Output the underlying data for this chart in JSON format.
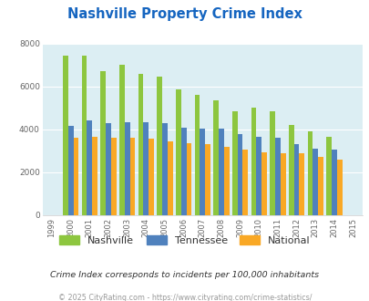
{
  "title": "Nashville Property Crime Index",
  "all_years": [
    1999,
    2000,
    2001,
    2002,
    2003,
    2004,
    2005,
    2006,
    2007,
    2008,
    2009,
    2010,
    2011,
    2012,
    2013,
    2014,
    2015
  ],
  "bar_years": [
    2000,
    2001,
    2002,
    2003,
    2004,
    2005,
    2006,
    2007,
    2008,
    2009,
    2010,
    2011,
    2012,
    2013,
    2014
  ],
  "nashville": [
    7450,
    7450,
    6700,
    7000,
    6600,
    6480,
    5850,
    5600,
    5350,
    4850,
    5000,
    4850,
    4200,
    3900,
    3650
  ],
  "tennessee": [
    4150,
    4400,
    4300,
    4350,
    4350,
    4300,
    4100,
    4050,
    4050,
    3800,
    3650,
    3600,
    3300,
    3100,
    3050
  ],
  "national": [
    3600,
    3650,
    3600,
    3600,
    3550,
    3450,
    3350,
    3300,
    3200,
    3050,
    2950,
    2900,
    2900,
    2700,
    2600
  ],
  "nashville_color": "#8dc63f",
  "tennessee_color": "#4f81bd",
  "national_color": "#f9a825",
  "plot_bg_color": "#dceef3",
  "title_color": "#1565c0",
  "ylim": [
    0,
    8000
  ],
  "yticks": [
    0,
    2000,
    4000,
    6000,
    8000
  ],
  "subtitle": "Crime Index corresponds to incidents per 100,000 inhabitants",
  "footer": "© 2025 CityRating.com - https://www.cityrating.com/crime-statistics/",
  "legend_labels": [
    "Nashville",
    "Tennessee",
    "National"
  ]
}
